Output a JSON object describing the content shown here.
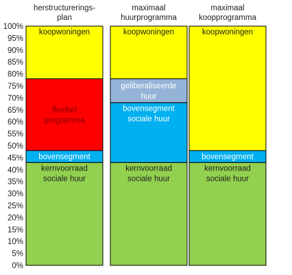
{
  "chart_data": {
    "type": "bar",
    "stacked": true,
    "title": "",
    "xlabel": "",
    "ylabel": "",
    "ylim": [
      0,
      100
    ],
    "y_ticks": [
      "0%",
      "5%",
      "10%",
      "15%",
      "20%",
      "25%",
      "30%",
      "35%",
      "40%",
      "45%",
      "50%",
      "55%",
      "60%",
      "65%",
      "70%",
      "75%",
      "80%",
      "85%",
      "90%",
      "95%",
      "100%"
    ],
    "grid": false,
    "legend": "none",
    "categories": [
      [
        "herstructurerings-",
        "plan"
      ],
      [
        "maximaal",
        "huurprogramma"
      ],
      [
        "maximaal",
        "koopprogramma"
      ]
    ],
    "bars": [
      {
        "segments": [
          {
            "label": [
              "kernvoorraad",
              "sociale huur"
            ],
            "from": 0,
            "to": 43,
            "color": "#92d050",
            "text_color": "#1f1f1f",
            "label_at": "top"
          },
          {
            "label": [
              "bovensegment"
            ],
            "from": 43,
            "to": 48,
            "color": "#00b0f0",
            "text_color": "#ffffff",
            "label_at": "center"
          },
          {
            "label": [
              "flexibel",
              "programma"
            ],
            "from": 48,
            "to": 78,
            "color": "#ff0000",
            "text_color": "#7f0000",
            "label_at": "center"
          },
          {
            "label": [
              "koopwoningen"
            ],
            "from": 78,
            "to": 100,
            "color": "#ffff00",
            "text_color": "#1f1f1f",
            "label_at": "top"
          }
        ]
      },
      {
        "segments": [
          {
            "label": [
              "kernvoorraad",
              "sociale huur"
            ],
            "from": 0,
            "to": 43,
            "color": "#92d050",
            "text_color": "#1f1f1f",
            "label_at": "top"
          },
          {
            "label": [
              "bovensegment",
              "sociale huur"
            ],
            "from": 43,
            "to": 68,
            "color": "#00b0f0",
            "text_color": "#ffffff",
            "label_at": "top"
          },
          {
            "label": [
              "geliberaliseerde",
              "huur"
            ],
            "from": 68,
            "to": 78,
            "color": "#95b3d7",
            "text_color": "#ffffff",
            "label_at": "center"
          },
          {
            "label": [
              "koopwoningen"
            ],
            "from": 78,
            "to": 100,
            "color": "#ffff00",
            "text_color": "#1f1f1f",
            "label_at": "top"
          }
        ]
      },
      {
        "segments": [
          {
            "label": [
              "kernvoorraad",
              "sociale huur"
            ],
            "from": 0,
            "to": 43,
            "color": "#92d050",
            "text_color": "#1f1f1f",
            "label_at": "top"
          },
          {
            "label": [
              "bovensegment"
            ],
            "from": 43,
            "to": 48,
            "color": "#00b0f0",
            "text_color": "#ffffff",
            "label_at": "center"
          },
          {
            "label": [
              "koopwoningen"
            ],
            "from": 48,
            "to": 100,
            "color": "#ffff00",
            "text_color": "#1f1f1f",
            "label_at": "top"
          }
        ]
      }
    ]
  }
}
